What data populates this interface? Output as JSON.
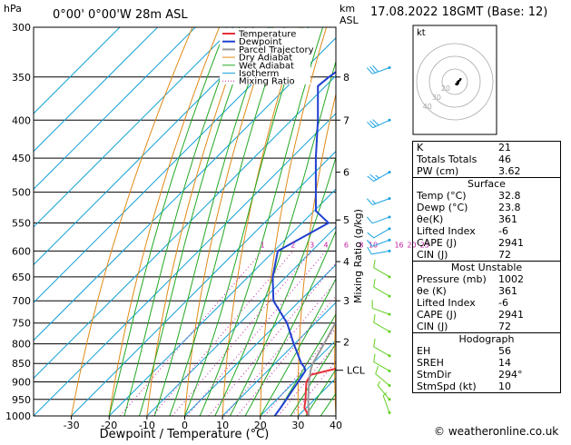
{
  "header": {
    "hpa_label": "hPa",
    "location": "0°00' 0°00'W 28m ASL",
    "km_label": "km",
    "asl_label": "ASL",
    "date": "17.08.2022 18GMT (Base: 12)"
  },
  "chart_data": {
    "type": "skew-t",
    "xlabel": "Dewpoint / Temperature (°C)",
    "ylabel_right": "Mixing Ratio (g/kg)",
    "x_ticks": [
      -30,
      -20,
      -10,
      0,
      10,
      20,
      30,
      40
    ],
    "xlim": [
      -40,
      40
    ],
    "pressure_levels": [
      300,
      350,
      400,
      450,
      500,
      550,
      600,
      650,
      700,
      750,
      800,
      850,
      900,
      950,
      1000
    ],
    "km_ticks": [
      {
        "km": "8",
        "p": 350
      },
      {
        "km": "7",
        "p": 400
      },
      {
        "km": "6",
        "p": 470
      },
      {
        "km": "5",
        "p": 545
      },
      {
        "km": "4",
        "p": 620
      },
      {
        "km": "3",
        "p": 700
      },
      {
        "km": "2",
        "p": 795
      }
    ],
    "lcl_label": "LCL",
    "lcl_pressure": 868,
    "mixing_ratio_labels": [
      "1",
      "2",
      "3",
      "4",
      "6",
      "8",
      "10",
      "16",
      "20",
      "25"
    ],
    "legend": [
      "Temperature",
      "Dewpoint",
      "Parcel Trajectory",
      "Dry Adiabat",
      "Wet Adiabat",
      "Isotherm",
      "Mixing Ratio"
    ],
    "series": [
      {
        "name": "Temperature",
        "color": "#e8303a",
        "points": [
          [
            1000,
            32.8
          ],
          [
            975,
            29.5
          ],
          [
            950,
            27.6
          ],
          [
            925,
            25.4
          ],
          [
            900,
            23.2
          ],
          [
            880,
            22.5
          ],
          [
            860,
            28.6
          ],
          [
            850,
            27.2
          ],
          [
            800,
            21.5
          ],
          [
            750,
            16.6
          ],
          [
            700,
            11.9
          ],
          [
            650,
            7.6
          ],
          [
            600,
            2.0
          ],
          [
            550,
            -3.4
          ],
          [
            500,
            -9.0
          ],
          [
            450,
            -16.5
          ],
          [
            400,
            -24.8
          ],
          [
            350,
            -34.8
          ],
          [
            335,
            -38.2
          ]
        ]
      },
      {
        "name": "Dewpoint",
        "color": "#2040d0",
        "points": [
          [
            1000,
            23.8
          ],
          [
            975,
            23.2
          ],
          [
            950,
            22.5
          ],
          [
            900,
            21.0
          ],
          [
            870,
            20.0
          ],
          [
            860,
            18.8
          ],
          [
            850,
            17.0
          ],
          [
            800,
            9.8
          ],
          [
            750,
            2.5
          ],
          [
            700,
            -7.0
          ],
          [
            650,
            -13.5
          ],
          [
            600,
            -19.0
          ],
          [
            550,
            -13.0
          ],
          [
            530,
            -19.5
          ],
          [
            500,
            -24.5
          ],
          [
            450,
            -33.5
          ],
          [
            400,
            -43.0
          ],
          [
            360,
            -52.0
          ],
          [
            350,
            -51.5
          ],
          [
            335,
            -50.0
          ]
        ]
      },
      {
        "name": "Parcel Trajectory",
        "color": "#999999",
        "points": [
          [
            1000,
            32.8
          ],
          [
            950,
            28.3
          ],
          [
            900,
            23.9
          ],
          [
            868,
            21.2
          ],
          [
            850,
            20.0
          ],
          [
            800,
            17.8
          ],
          [
            750,
            15.3
          ],
          [
            700,
            12.4
          ],
          [
            650,
            9.1
          ],
          [
            600,
            5.3
          ],
          [
            550,
            1.1
          ],
          [
            500,
            -4.1
          ],
          [
            450,
            -10.3
          ],
          [
            400,
            -17.8
          ],
          [
            350,
            -27.2
          ],
          [
            335,
            -30.5
          ]
        ]
      }
    ],
    "wind_barbs": [
      {
        "p": 340,
        "dir": 250,
        "kt": 30
      },
      {
        "p": 400,
        "dir": 245,
        "kt": 30
      },
      {
        "p": 470,
        "dir": 240,
        "kt": 25
      },
      {
        "p": 510,
        "dir": 250,
        "kt": 15
      },
      {
        "p": 540,
        "dir": 250,
        "kt": 10
      },
      {
        "p": 560,
        "dir": 240,
        "kt": 10
      },
      {
        "p": 580,
        "dir": 250,
        "kt": 10
      },
      {
        "p": 600,
        "dir": 260,
        "kt": 10
      },
      {
        "p": 650,
        "dir": 300,
        "kt": 10
      },
      {
        "p": 690,
        "dir": 300,
        "kt": 10
      },
      {
        "p": 730,
        "dir": 290,
        "kt": 10
      },
      {
        "p": 770,
        "dir": 300,
        "kt": 10
      },
      {
        "p": 830,
        "dir": 300,
        "kt": 10
      },
      {
        "p": 870,
        "dir": 300,
        "kt": 10
      },
      {
        "p": 910,
        "dir": 310,
        "kt": 10
      },
      {
        "p": 950,
        "dir": 320,
        "kt": 5
      },
      {
        "p": 990,
        "dir": 340,
        "kt": 5
      }
    ],
    "hodograph": {
      "label": "kt",
      "ring_labels": [
        "20",
        "30",
        "40"
      ],
      "points": [
        [
          4,
          -2
        ],
        [
          7,
          -3
        ],
        [
          9,
          -1
        ],
        [
          10,
          1
        ],
        [
          11,
          2
        ],
        [
          10,
          5
        ],
        [
          8,
          4
        ],
        [
          12,
          8
        ],
        [
          16,
          10
        ],
        [
          18,
          14
        ]
      ]
    }
  },
  "indices": {
    "rows": [
      {
        "label": "K",
        "value": "21"
      },
      {
        "label": "Totals Totals",
        "value": "46"
      },
      {
        "label": "PW (cm)",
        "value": "3.62"
      }
    ],
    "surface": {
      "title": "Surface",
      "rows": [
        {
          "label": "Temp (°C)",
          "value": "32.8"
        },
        {
          "label": "Dewp (°C)",
          "value": "23.8"
        },
        {
          "label": "θe(K)",
          "value": "361"
        },
        {
          "label": "Lifted Index",
          "value": "-6"
        },
        {
          "label": "CAPE (J)",
          "value": "2941"
        },
        {
          "label": "CIN (J)",
          "value": "72"
        }
      ]
    },
    "most_unstable": {
      "title": "Most Unstable",
      "rows": [
        {
          "label": "Pressure (mb)",
          "value": "1002"
        },
        {
          "label": "θe (K)",
          "value": "361"
        },
        {
          "label": "Lifted Index",
          "value": "-6"
        },
        {
          "label": "CAPE (J)",
          "value": "2941"
        },
        {
          "label": "CIN (J)",
          "value": "72"
        }
      ]
    },
    "hodograph": {
      "title": "Hodograph",
      "rows": [
        {
          "label": "EH",
          "value": "56"
        },
        {
          "label": "SREH",
          "value": "14"
        },
        {
          "label": "StmDir",
          "value": "294°"
        },
        {
          "label": "StmSpd (kt)",
          "value": "10"
        }
      ]
    }
  },
  "footer": {
    "copyright": "© weatheronline.co.uk"
  },
  "colors": {
    "temperature": "#e8303a",
    "dewpoint": "#2040d0",
    "parcel": "#999999",
    "dry_adiabat": "#e08a18",
    "wet_adiabat": "#22a822",
    "isotherm": "#1aa2d8",
    "mixing_ratio": "#c020a0",
    "barbs_upper": "#18a0e0",
    "barbs_lower": "#60d020"
  }
}
